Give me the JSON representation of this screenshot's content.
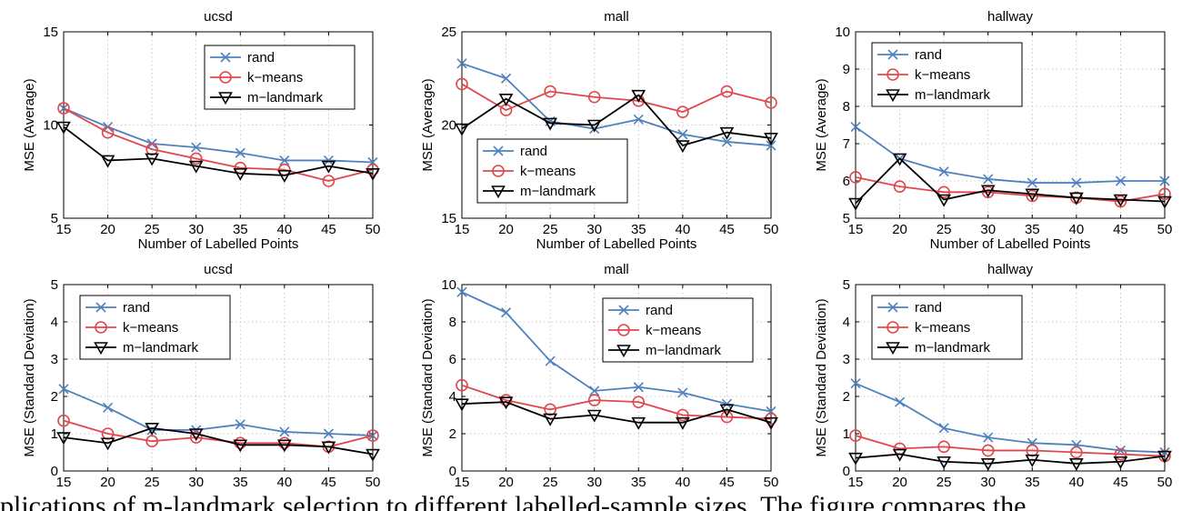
{
  "figure": {
    "caption_fragment": "plications of m-landmark selection to different labelled-sample sizes. The figure compares the"
  },
  "colors": {
    "rand": "#4f81bd",
    "kmeans": "#e0474c",
    "mlandmark": "#000000",
    "grid": "#bbbbbb"
  },
  "chart_data": [
    {
      "type": "line",
      "title": "ucsd",
      "xlabel": "Number of Labelled Points",
      "ylabel": "MSE (Average)",
      "x": [
        15,
        20,
        25,
        30,
        35,
        40,
        45,
        50
      ],
      "xlim": [
        15,
        50
      ],
      "ylim": [
        5,
        15
      ],
      "xticks": [
        "15",
        "20",
        "25",
        "30",
        "35",
        "40",
        "45",
        "50"
      ],
      "yticks": [
        "5",
        "10",
        "15"
      ],
      "grid": true,
      "legend_position": "top-right",
      "series": [
        {
          "name": "rand",
          "marker": "x",
          "values": [
            10.9,
            9.9,
            9.0,
            8.8,
            8.5,
            8.1,
            8.1,
            8.0
          ]
        },
        {
          "name": "k−means",
          "marker": "circle",
          "values": [
            10.9,
            9.6,
            8.7,
            8.2,
            7.7,
            7.6,
            7.0,
            7.6
          ]
        },
        {
          "name": "m−landmark",
          "marker": "triangle-down",
          "values": [
            9.9,
            8.1,
            8.2,
            7.8,
            7.4,
            7.3,
            7.8,
            7.4
          ]
        }
      ]
    },
    {
      "type": "line",
      "title": "mall",
      "xlabel": "Number of Labelled Points",
      "ylabel": "MSE (Average)",
      "x": [
        15,
        20,
        25,
        30,
        35,
        40,
        45,
        50
      ],
      "xlim": [
        15,
        50
      ],
      "ylim": [
        15,
        25
      ],
      "xticks": [
        "15",
        "20",
        "25",
        "30",
        "35",
        "40",
        "45",
        "50"
      ],
      "yticks": [
        "15",
        "20",
        "25"
      ],
      "grid": true,
      "legend_position": "bottom-right",
      "series": [
        {
          "name": "rand",
          "marker": "x",
          "values": [
            23.3,
            22.5,
            20.2,
            19.8,
            20.3,
            19.5,
            19.1,
            18.9
          ]
        },
        {
          "name": "k−means",
          "marker": "circle",
          "values": [
            22.2,
            20.8,
            21.8,
            21.5,
            21.3,
            20.7,
            21.8,
            21.2
          ]
        },
        {
          "name": "m−landmark",
          "marker": "triangle-down",
          "values": [
            19.8,
            21.4,
            20.1,
            20.0,
            21.6,
            18.9,
            19.6,
            19.3
          ]
        }
      ]
    },
    {
      "type": "line",
      "title": "hallway",
      "xlabel": "Number of Labelled Points",
      "ylabel": "MSE (Average)",
      "x": [
        15,
        20,
        25,
        30,
        35,
        40,
        45,
        50
      ],
      "xlim": [
        15,
        50
      ],
      "ylim": [
        5,
        10
      ],
      "xticks": [
        "15",
        "20",
        "25",
        "30",
        "35",
        "40",
        "45",
        "50"
      ],
      "yticks": [
        "5",
        "6",
        "7",
        "8",
        "9",
        "10"
      ],
      "grid": true,
      "legend_position": "top-left",
      "series": [
        {
          "name": "rand",
          "marker": "x",
          "values": [
            7.45,
            6.6,
            6.25,
            6.05,
            5.95,
            5.95,
            6.0,
            6.0
          ]
        },
        {
          "name": "k−means",
          "marker": "circle",
          "values": [
            6.1,
            5.85,
            5.7,
            5.7,
            5.6,
            5.55,
            5.45,
            5.65
          ]
        },
        {
          "name": "m−landmark",
          "marker": "triangle-down",
          "values": [
            5.4,
            6.6,
            5.5,
            5.75,
            5.65,
            5.55,
            5.5,
            5.45
          ]
        }
      ]
    },
    {
      "type": "line",
      "title": "ucsd",
      "xlabel": "Number of Labelled Points",
      "ylabel": "MSE (Standard Deviation)",
      "x": [
        15,
        20,
        25,
        30,
        35,
        40,
        45,
        50
      ],
      "xlim": [
        15,
        50
      ],
      "ylim": [
        0,
        5
      ],
      "xticks": [
        "15",
        "20",
        "25",
        "30",
        "35",
        "40",
        "45",
        "50"
      ],
      "yticks": [
        "0",
        "1",
        "2",
        "3",
        "4",
        "5"
      ],
      "grid": true,
      "legend_position": "top-left",
      "series": [
        {
          "name": "rand",
          "marker": "x",
          "values": [
            2.2,
            1.7,
            1.1,
            1.1,
            1.25,
            1.05,
            1.0,
            0.95
          ]
        },
        {
          "name": "k−means",
          "marker": "circle",
          "values": [
            1.35,
            1.0,
            0.8,
            0.9,
            0.75,
            0.75,
            0.65,
            0.95
          ]
        },
        {
          "name": "m−landmark",
          "marker": "triangle-down",
          "values": [
            0.9,
            0.75,
            1.15,
            1.0,
            0.7,
            0.7,
            0.65,
            0.45
          ]
        }
      ]
    },
    {
      "type": "line",
      "title": "mall",
      "xlabel": "Number of Labelled Points",
      "ylabel": "MSE (Standard Deviation)",
      "x": [
        15,
        20,
        25,
        30,
        35,
        40,
        45,
        50
      ],
      "xlim": [
        15,
        50
      ],
      "ylim": [
        0,
        10
      ],
      "xticks": [
        "15",
        "20",
        "25",
        "30",
        "35",
        "40",
        "45",
        "50"
      ],
      "yticks": [
        "0",
        "2",
        "4",
        "6",
        "8",
        "10"
      ],
      "grid": true,
      "legend_position": "top-right",
      "series": [
        {
          "name": "rand",
          "marker": "x",
          "values": [
            9.6,
            8.5,
            5.9,
            4.3,
            4.5,
            4.2,
            3.6,
            3.2
          ]
        },
        {
          "name": "k−means",
          "marker": "circle",
          "values": [
            4.6,
            3.8,
            3.3,
            3.8,
            3.7,
            3.0,
            2.9,
            2.8
          ]
        },
        {
          "name": "m−landmark",
          "marker": "triangle-down",
          "values": [
            3.6,
            3.7,
            2.8,
            3.0,
            2.6,
            2.6,
            3.3,
            2.6
          ]
        }
      ]
    },
    {
      "type": "line",
      "title": "hallway",
      "xlabel": "Number of Labelled Points",
      "ylabel": "MSE (Standard Deviation)",
      "x": [
        15,
        20,
        25,
        30,
        35,
        40,
        45,
        50
      ],
      "xlim": [
        15,
        50
      ],
      "ylim": [
        0,
        5
      ],
      "xticks": [
        "15",
        "20",
        "25",
        "30",
        "35",
        "40",
        "45",
        "50"
      ],
      "yticks": [
        "0",
        "1",
        "2",
        "3",
        "4",
        "5"
      ],
      "grid": true,
      "legend_position": "top-left",
      "series": [
        {
          "name": "rand",
          "marker": "x",
          "values": [
            2.35,
            1.85,
            1.15,
            0.9,
            0.75,
            0.7,
            0.55,
            0.5
          ]
        },
        {
          "name": "k−means",
          "marker": "circle",
          "values": [
            0.95,
            0.6,
            0.65,
            0.55,
            0.55,
            0.5,
            0.45,
            0.4
          ]
        },
        {
          "name": "m−landmark",
          "marker": "triangle-down",
          "values": [
            0.35,
            0.45,
            0.25,
            0.2,
            0.3,
            0.2,
            0.25,
            0.4
          ]
        }
      ]
    }
  ]
}
